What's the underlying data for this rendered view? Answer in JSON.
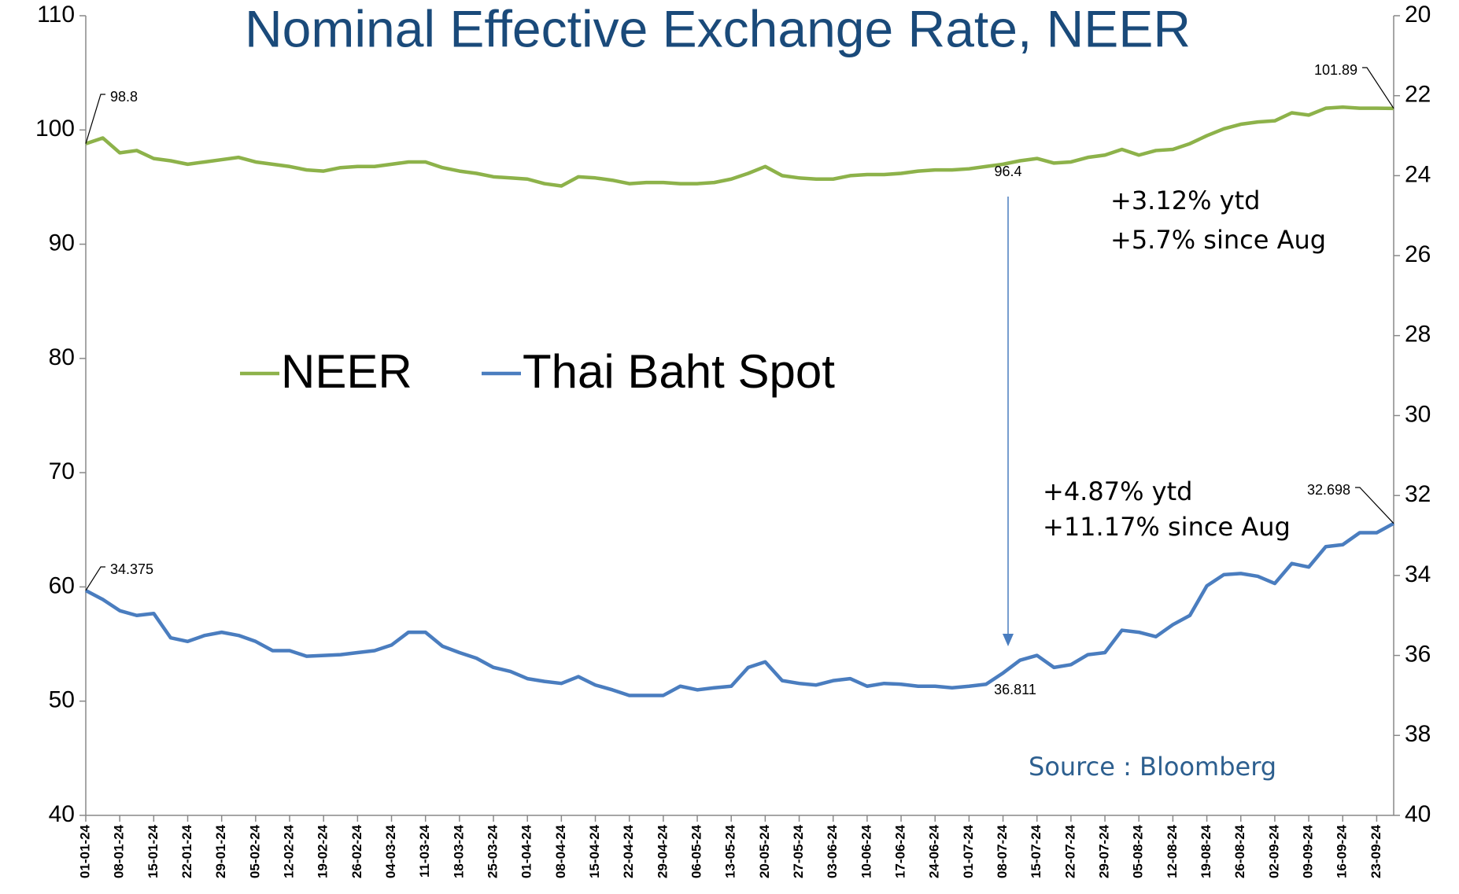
{
  "chart_data": {
    "type": "line",
    "title": "Nominal Effective Exchange Rate, NEER",
    "categories": [
      "01-01-24",
      null,
      "08-01-24",
      null,
      "15-01-24",
      null,
      "22-01-24",
      null,
      "29-01-24",
      null,
      "05-02-24",
      null,
      "12-02-24",
      null,
      "19-02-24",
      null,
      "26-02-24",
      null,
      "04-03-24",
      null,
      "11-03-24",
      null,
      "18-03-24",
      null,
      "25-03-24",
      null,
      "01-04-24",
      null,
      "08-04-24",
      null,
      "15-04-24",
      null,
      "22-04-24",
      null,
      "29-04-24",
      null,
      "06-05-24",
      null,
      "13-05-24",
      null,
      "20-05-24",
      null,
      "27-05-24",
      null,
      "03-06-24",
      null,
      "10-06-24",
      null,
      "17-06-24",
      null,
      "24-06-24",
      null,
      "01-07-24",
      null,
      "08-07-24",
      null,
      "15-07-24",
      null,
      "22-07-24",
      null,
      "29-07-24",
      null,
      "05-08-24",
      null,
      "12-08-24",
      null,
      "19-08-24",
      null,
      "26-08-24",
      null,
      "02-09-24",
      null,
      "09-09-24",
      null,
      "16-09-24",
      null,
      "23-09-24",
      null
    ],
    "series": [
      {
        "name": "NEER",
        "color": "#8db24a",
        "values": [
          98.8,
          99.3,
          98.0,
          98.2,
          97.5,
          97.3,
          97.0,
          97.2,
          97.4,
          97.6,
          97.2,
          97.0,
          96.8,
          96.5,
          96.4,
          96.7,
          96.8,
          96.8,
          97.0,
          97.2,
          97.2,
          96.7,
          96.4,
          96.2,
          95.9,
          95.8,
          95.7,
          95.3,
          95.1,
          95.9,
          95.8,
          95.6,
          95.3,
          95.4,
          95.4,
          95.3,
          95.3,
          95.4,
          95.7,
          96.2,
          96.8,
          96.0,
          95.8,
          95.7,
          95.7,
          96.0,
          96.1,
          96.1,
          96.2,
          96.4,
          96.5,
          96.5,
          96.6,
          96.8,
          97.0,
          97.3,
          97.5,
          97.1,
          97.2,
          97.6,
          97.8,
          98.3,
          97.8,
          98.2,
          98.3,
          98.8,
          99.5,
          100.1,
          100.5,
          100.7,
          100.8,
          101.5,
          101.3,
          101.9,
          102.0,
          101.9,
          101.9,
          101.89
        ]
      },
      {
        "name": "Thai Baht Spot",
        "color": "#4a7dbf",
        "axis": "y2",
        "values": [
          34.375,
          34.6,
          34.88,
          35.0,
          34.95,
          35.56,
          35.65,
          35.5,
          35.42,
          35.5,
          35.65,
          35.88,
          35.88,
          36.02,
          36.0,
          35.98,
          35.93,
          35.88,
          35.74,
          35.42,
          35.42,
          35.77,
          35.93,
          36.07,
          36.3,
          36.4,
          36.58,
          36.65,
          36.7,
          36.53,
          36.74,
          36.86,
          37.0,
          37.0,
          37.0,
          36.77,
          36.86,
          36.81,
          36.77,
          36.3,
          36.16,
          36.63,
          36.7,
          36.74,
          36.63,
          36.58,
          36.77,
          36.7,
          36.72,
          36.77,
          36.77,
          36.81,
          36.77,
          36.72,
          36.44,
          36.12,
          36.0,
          36.3,
          36.23,
          35.98,
          35.93,
          35.37,
          35.42,
          35.53,
          35.23,
          35.0,
          34.26,
          33.98,
          33.95,
          34.02,
          34.2,
          33.7,
          33.79,
          33.28,
          33.23,
          32.93,
          32.93,
          32.698
        ]
      }
    ],
    "ylim": [
      40,
      110
    ],
    "yticks": [
      40,
      50,
      60,
      70,
      80,
      90,
      100,
      110
    ],
    "y2lim": [
      40,
      20
    ],
    "y2ticks": [
      20,
      22,
      24,
      26,
      28,
      30,
      32,
      34,
      36,
      38,
      40
    ],
    "legend": "upper left",
    "annotations": [
      "96.4",
      "36.811",
      "+3.12% ytd",
      "+5.7% since Aug",
      "+4.87% ytd",
      "+11.17% since Aug",
      "Source : Bloomberg"
    ]
  }
}
